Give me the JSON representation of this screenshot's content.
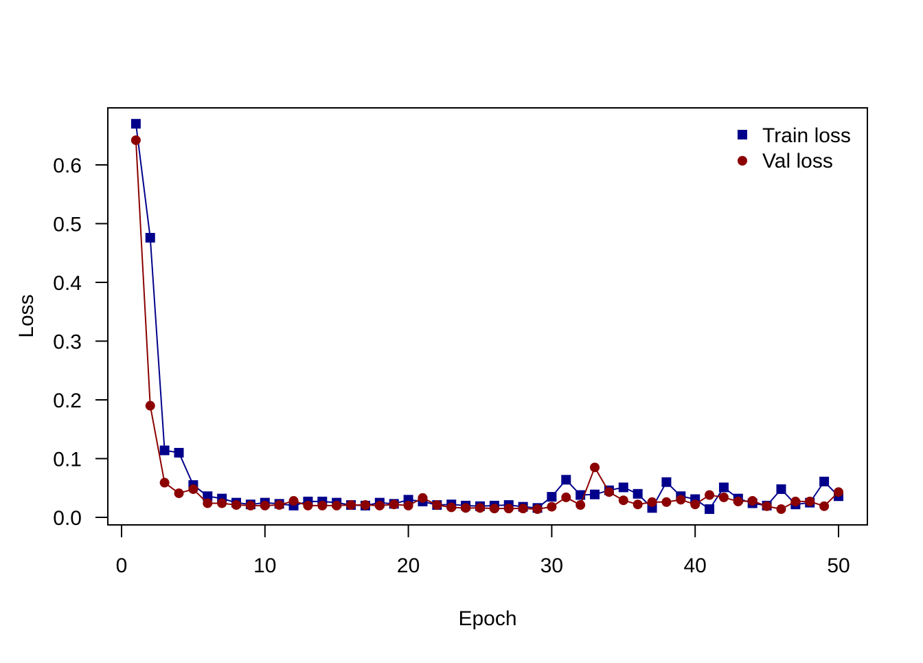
{
  "chart_data": {
    "type": "line",
    "title": "",
    "xlabel": "Epoch",
    "ylabel": "Loss",
    "xlim": [
      0,
      50
    ],
    "ylim": [
      0.0,
      0.7
    ],
    "x_ticks": [
      0,
      10,
      20,
      30,
      40,
      50
    ],
    "y_ticks": [
      0.0,
      0.1,
      0.2,
      0.3,
      0.4,
      0.5,
      0.6
    ],
    "grid": false,
    "legend_position": "top-right",
    "x": [
      1,
      2,
      3,
      4,
      5,
      6,
      7,
      8,
      9,
      10,
      11,
      12,
      13,
      14,
      15,
      16,
      17,
      18,
      19,
      20,
      21,
      22,
      23,
      24,
      25,
      26,
      27,
      28,
      29,
      30,
      31,
      32,
      33,
      34,
      35,
      36,
      37,
      38,
      39,
      40,
      41,
      42,
      43,
      44,
      45,
      46,
      47,
      48,
      49,
      50
    ],
    "series": [
      {
        "name": "Train loss",
        "color": "#00008B",
        "marker": "square",
        "values": [
          0.67,
          0.476,
          0.114,
          0.11,
          0.055,
          0.036,
          0.032,
          0.025,
          0.022,
          0.025,
          0.023,
          0.02,
          0.027,
          0.027,
          0.025,
          0.021,
          0.02,
          0.025,
          0.023,
          0.03,
          0.027,
          0.021,
          0.022,
          0.02,
          0.019,
          0.02,
          0.021,
          0.018,
          0.016,
          0.035,
          0.064,
          0.038,
          0.039,
          0.046,
          0.051,
          0.04,
          0.016,
          0.06,
          0.036,
          0.031,
          0.014,
          0.051,
          0.032,
          0.024,
          0.02,
          0.048,
          0.022,
          0.025,
          0.061,
          0.036
        ]
      },
      {
        "name": "Val loss",
        "color": "#8B0000",
        "marker": "circle",
        "values": [
          0.642,
          0.19,
          0.059,
          0.041,
          0.048,
          0.024,
          0.024,
          0.021,
          0.02,
          0.02,
          0.021,
          0.028,
          0.02,
          0.02,
          0.02,
          0.021,
          0.021,
          0.02,
          0.022,
          0.02,
          0.033,
          0.021,
          0.017,
          0.016,
          0.016,
          0.015,
          0.015,
          0.015,
          0.014,
          0.018,
          0.034,
          0.021,
          0.085,
          0.043,
          0.029,
          0.022,
          0.026,
          0.026,
          0.03,
          0.022,
          0.038,
          0.034,
          0.027,
          0.028,
          0.019,
          0.014,
          0.027,
          0.027,
          0.019,
          0.043
        ]
      }
    ]
  }
}
